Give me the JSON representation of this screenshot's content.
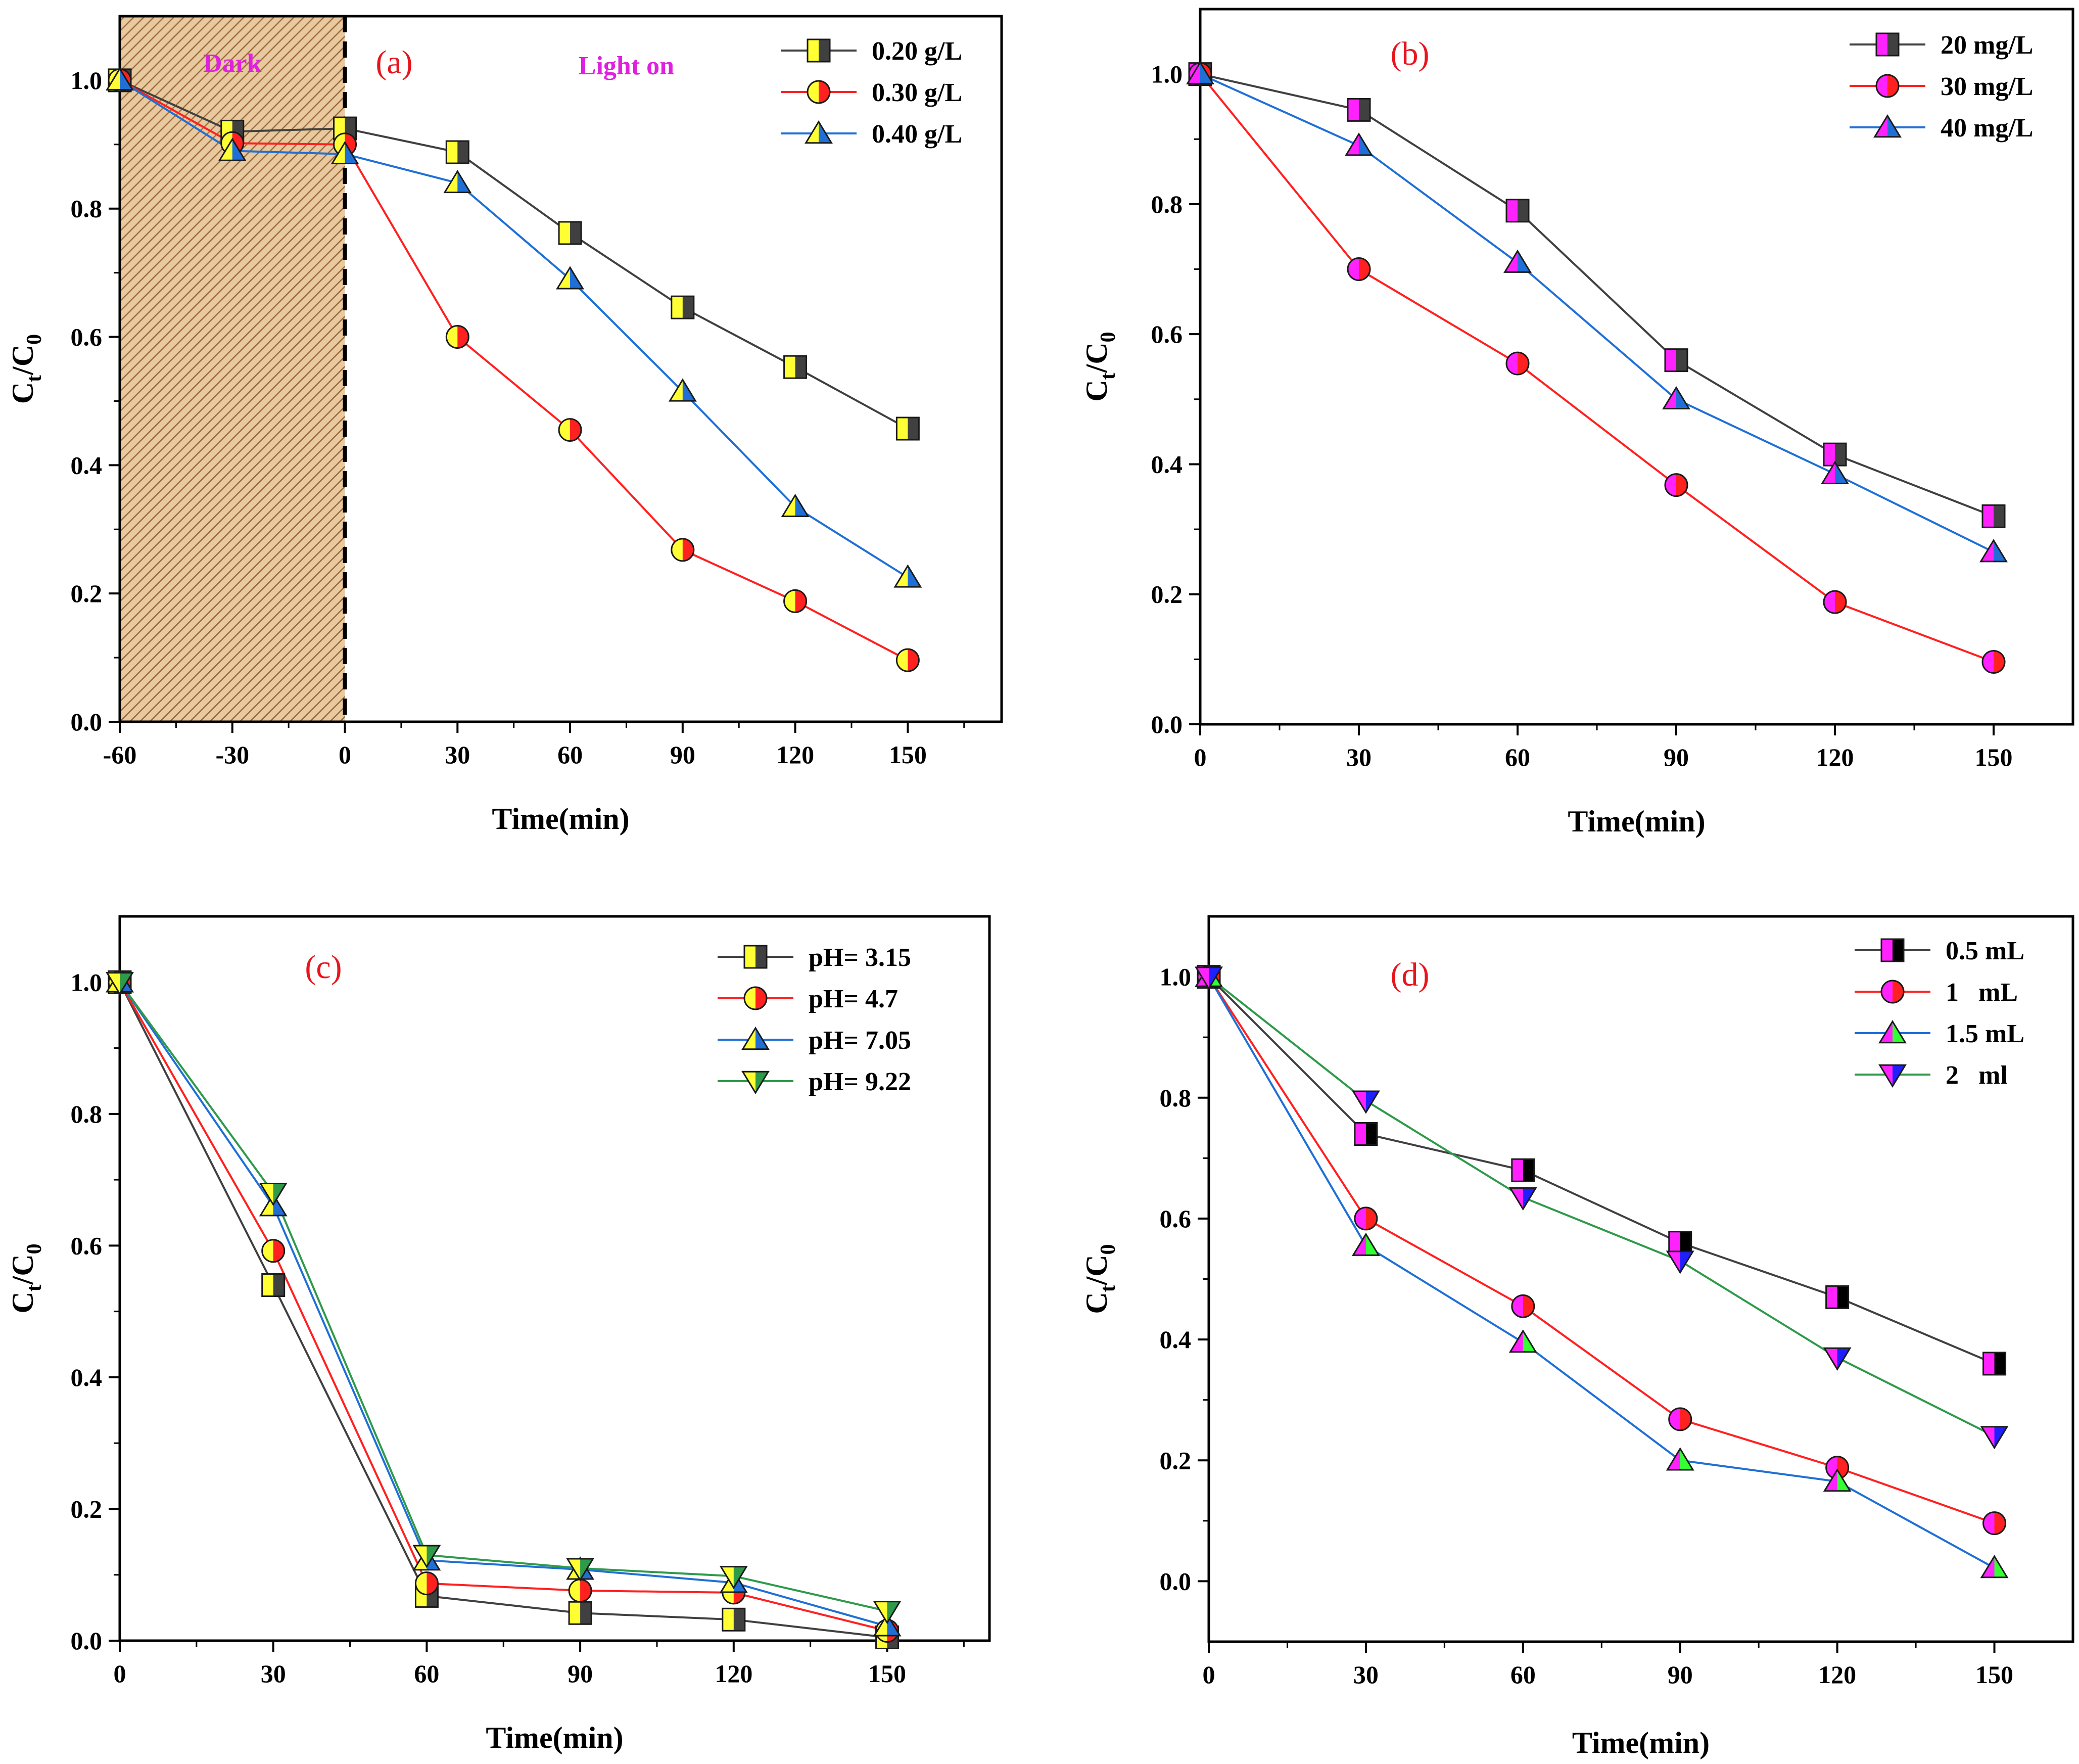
{
  "chart_data": [
    {
      "panel": "(a)",
      "type": "line",
      "xlabel": "Time(min)",
      "ylabel_main": "C",
      "ylabel_sub1": "t",
      "ylabel_mid": "/C",
      "ylabel_sub2": "0",
      "xlim": [
        -60,
        175
      ],
      "ylim": [
        0,
        1.1
      ],
      "xticks": [
        -60,
        -30,
        0,
        30,
        60,
        90,
        120,
        150
      ],
      "yticks": [
        0.0,
        0.2,
        0.4,
        0.6,
        0.8,
        1.0
      ],
      "ytick_labels": [
        "0.0",
        "0.2",
        "0.4",
        "0.6",
        "0.8",
        "1.0"
      ],
      "dark_region": [
        -60,
        0
      ],
      "dark_label": "Dark",
      "light_label": "Light on",
      "legend_position": "top-right",
      "series": [
        {
          "name": "0.20 g/L",
          "marker": "square",
          "line_color": "#404040",
          "fill_a": "#ffff33",
          "fill_b": "#404040",
          "x": [
            -60,
            -30,
            0,
            30,
            60,
            90,
            120,
            150
          ],
          "y": [
            1.0,
            0.92,
            0.925,
            0.888,
            0.762,
            0.646,
            0.553,
            0.457
          ]
        },
        {
          "name": "0.30 g/L",
          "marker": "circle",
          "line_color": "#ff2020",
          "fill_a": "#ffff33",
          "fill_b": "#ff2020",
          "x": [
            -60,
            -30,
            0,
            30,
            60,
            90,
            120,
            150
          ],
          "y": [
            1.0,
            0.902,
            0.9,
            0.6,
            0.455,
            0.268,
            0.188,
            0.096
          ]
        },
        {
          "name": "0.40 g/L",
          "marker": "triangle-up",
          "line_color": "#1f6fd6",
          "fill_a": "#ffff33",
          "fill_b": "#1f6fd6",
          "x": [
            -60,
            -30,
            0,
            30,
            60,
            90,
            120,
            150
          ],
          "y": [
            1.0,
            0.89,
            0.885,
            0.84,
            0.69,
            0.515,
            0.335,
            0.225
          ]
        }
      ]
    },
    {
      "panel": "(b)",
      "type": "line",
      "xlabel": "Time(min)",
      "ylabel_main": "C",
      "ylabel_sub1": "t",
      "ylabel_mid": "/C",
      "ylabel_sub2": "0",
      "xlim": [
        0,
        165
      ],
      "ylim": [
        0,
        1.1
      ],
      "xticks": [
        0,
        30,
        60,
        90,
        120,
        150
      ],
      "yticks": [
        0.0,
        0.2,
        0.4,
        0.6,
        0.8,
        1.0
      ],
      "ytick_labels": [
        "0.0",
        "0.2",
        "0.4",
        "0.6",
        "0.8",
        "1.0"
      ],
      "legend_position": "top-right",
      "series": [
        {
          "name": "20 mg/L",
          "marker": "square",
          "line_color": "#404040",
          "fill_a": "#ff22ff",
          "fill_b": "#404040",
          "x": [
            0,
            30,
            60,
            90,
            120,
            150
          ],
          "y": [
            1.0,
            0.945,
            0.79,
            0.56,
            0.415,
            0.32
          ]
        },
        {
          "name": "30 mg/L",
          "marker": "circle",
          "line_color": "#ff2020",
          "fill_a": "#ff22ff",
          "fill_b": "#ff2020",
          "x": [
            0,
            30,
            60,
            90,
            120,
            150
          ],
          "y": [
            1.0,
            0.7,
            0.555,
            0.368,
            0.188,
            0.096
          ]
        },
        {
          "name": "40 mg/L",
          "marker": "triangle-up",
          "line_color": "#1f6fd6",
          "fill_a": "#ff22ff",
          "fill_b": "#1f6fd6",
          "x": [
            0,
            30,
            60,
            90,
            120,
            150
          ],
          "y": [
            1.0,
            0.89,
            0.71,
            0.5,
            0.385,
            0.265
          ]
        }
      ]
    },
    {
      "panel": "(c)",
      "type": "line",
      "xlabel": "Time(min)",
      "ylabel_main": "C",
      "ylabel_sub1": "t",
      "ylabel_mid": "/C",
      "ylabel_sub2": "0",
      "xlim": [
        0,
        170
      ],
      "ylim": [
        0,
        1.1
      ],
      "xticks": [
        0,
        30,
        60,
        90,
        120,
        150
      ],
      "yticks": [
        0.0,
        0.2,
        0.4,
        0.6,
        0.8,
        1.0
      ],
      "ytick_labels": [
        "0.0",
        "0.2",
        "0.4",
        "0.6",
        "0.8",
        "1.0"
      ],
      "legend_position": "top-right",
      "series": [
        {
          "name": "pH= 3.15",
          "marker": "square",
          "line_color": "#404040",
          "fill_a": "#ffff33",
          "fill_b": "#404040",
          "x": [
            0,
            30,
            60,
            90,
            120,
            150
          ],
          "y": [
            1.0,
            0.54,
            0.068,
            0.042,
            0.032,
            0.005
          ]
        },
        {
          "name": "pH= 4.7",
          "marker": "circle",
          "line_color": "#ff2020",
          "fill_a": "#ffff33",
          "fill_b": "#ff2020",
          "x": [
            0,
            30,
            60,
            90,
            120,
            150
          ],
          "y": [
            1.0,
            0.592,
            0.087,
            0.076,
            0.073,
            0.015
          ]
        },
        {
          "name": "pH= 7.05",
          "marker": "triangle-up",
          "line_color": "#1f6fd6",
          "fill_a": "#ffff33",
          "fill_b": "#1f6fd6",
          "x": [
            0,
            30,
            60,
            90,
            120,
            150
          ],
          "y": [
            1.0,
            0.66,
            0.122,
            0.108,
            0.088,
            0.022
          ]
        },
        {
          "name": "pH= 9.22",
          "marker": "triangle-down",
          "line_color": "#2e9a4a",
          "fill_a": "#ffff33",
          "fill_b": "#2e9a4a",
          "x": [
            0,
            30,
            60,
            90,
            120,
            150
          ],
          "y": [
            1.0,
            0.68,
            0.13,
            0.11,
            0.098,
            0.045
          ]
        }
      ]
    },
    {
      "panel": "(d)",
      "type": "line",
      "xlabel": "Time(min)",
      "ylabel_main": "C",
      "ylabel_sub1": "t",
      "ylabel_mid": "/C",
      "ylabel_sub2": "0",
      "xlim": [
        0,
        165
      ],
      "ylim": [
        -0.1,
        1.1
      ],
      "xticks": [
        0,
        30,
        60,
        90,
        120,
        150
      ],
      "yticks": [
        0.0,
        0.2,
        0.4,
        0.6,
        0.8,
        1.0
      ],
      "ytick_labels": [
        "0.0",
        "0.2",
        "0.4",
        "0.6",
        "0.8",
        "1.0"
      ],
      "legend_position": "top-right",
      "series": [
        {
          "name": "0.5 mL",
          "marker": "square",
          "line_color": "#404040",
          "fill_a": "#ff22ff",
          "fill_b": "#000000",
          "x": [
            0,
            30,
            60,
            90,
            120,
            150
          ],
          "y": [
            1.0,
            0.74,
            0.68,
            0.56,
            0.47,
            0.36
          ]
        },
        {
          "name": "1   mL",
          "marker": "circle",
          "line_color": "#ff2020",
          "fill_a": "#ff22ff",
          "fill_b": "#ff2020",
          "x": [
            0,
            30,
            60,
            90,
            120,
            150
          ],
          "y": [
            1.0,
            0.6,
            0.455,
            0.268,
            0.188,
            0.096
          ]
        },
        {
          "name": "1.5 mL",
          "marker": "triangle-up",
          "line_color": "#1f6fd6",
          "fill_a": "#ff22ff",
          "fill_b": "#33ff33",
          "x": [
            0,
            30,
            60,
            90,
            120,
            150
          ],
          "y": [
            1.0,
            0.555,
            0.395,
            0.2,
            0.165,
            0.022
          ]
        },
        {
          "name": "2   ml",
          "marker": "triangle-down",
          "line_color": "#2e9a4a",
          "fill_a": "#ff22ff",
          "fill_b": "#2020ff",
          "x": [
            0,
            30,
            60,
            90,
            120,
            150
          ],
          "y": [
            1.0,
            0.795,
            0.635,
            0.53,
            0.37,
            0.24
          ]
        }
      ]
    }
  ]
}
